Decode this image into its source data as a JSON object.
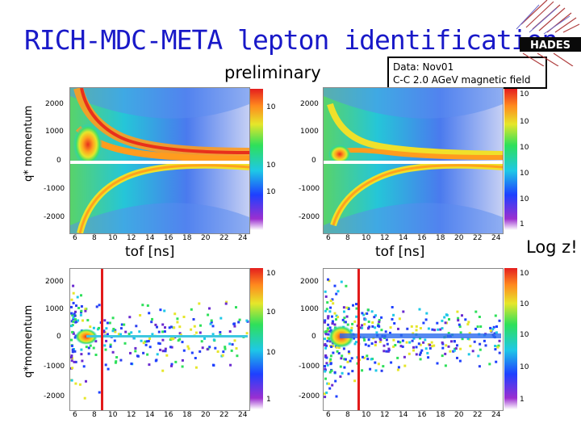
{
  "header": {
    "title": "RICH-MDC-META lepton identification",
    "preliminary": "preliminary",
    "data_line1": "Data: Nov01",
    "data_line2": "C-C 2.0 AGeV magnetic field",
    "logo_text": "HADES"
  },
  "axes": {
    "ylabel_top": "q* momentum",
    "ylabel_bottom": "q*momentum",
    "xlabel_left": "tof [ns]",
    "xlabel_right": "tof [ns]",
    "y_ticks_top": [
      "2000",
      "1000",
      "0",
      "-1000",
      "-2000"
    ],
    "y_ticks_bottom": [
      "2000",
      "1000",
      "0",
      "-1000",
      "-2000"
    ],
    "x_ticks": [
      "6",
      "8",
      "10",
      "12",
      "14",
      "16",
      "18",
      "20",
      "22",
      "24"
    ]
  },
  "annotation": {
    "logz": "Log z!"
  },
  "colorbar_labels": {
    "tl": [
      "10",
      "10",
      "10"
    ],
    "tr": [
      "10",
      "10",
      "10",
      "10",
      "10",
      "1"
    ],
    "bl": [
      "10",
      "10",
      "10",
      "1"
    ],
    "br": [
      "10",
      "10",
      "10",
      "10",
      "1"
    ]
  }
}
